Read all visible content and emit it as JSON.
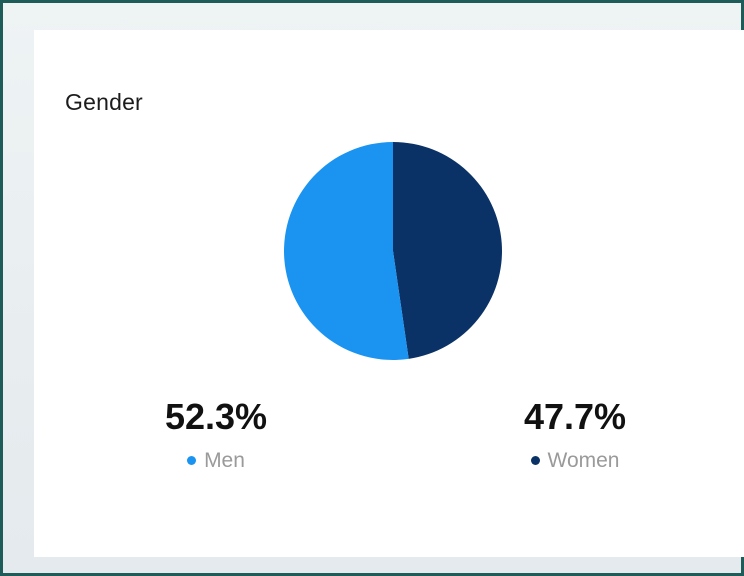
{
  "card": {
    "title": "Gender"
  },
  "chart_data": {
    "type": "pie",
    "title": "Gender",
    "categories": [
      "Men",
      "Women"
    ],
    "values": [
      52.3,
      47.7
    ],
    "colors": [
      "#1a94f0",
      "#0b3266"
    ],
    "unit": "%"
  },
  "stats": [
    {
      "value": "52.3%",
      "label": "Men",
      "color": "#1a94f0"
    },
    {
      "value": "47.7%",
      "label": "Women",
      "color": "#0b3266"
    }
  ]
}
